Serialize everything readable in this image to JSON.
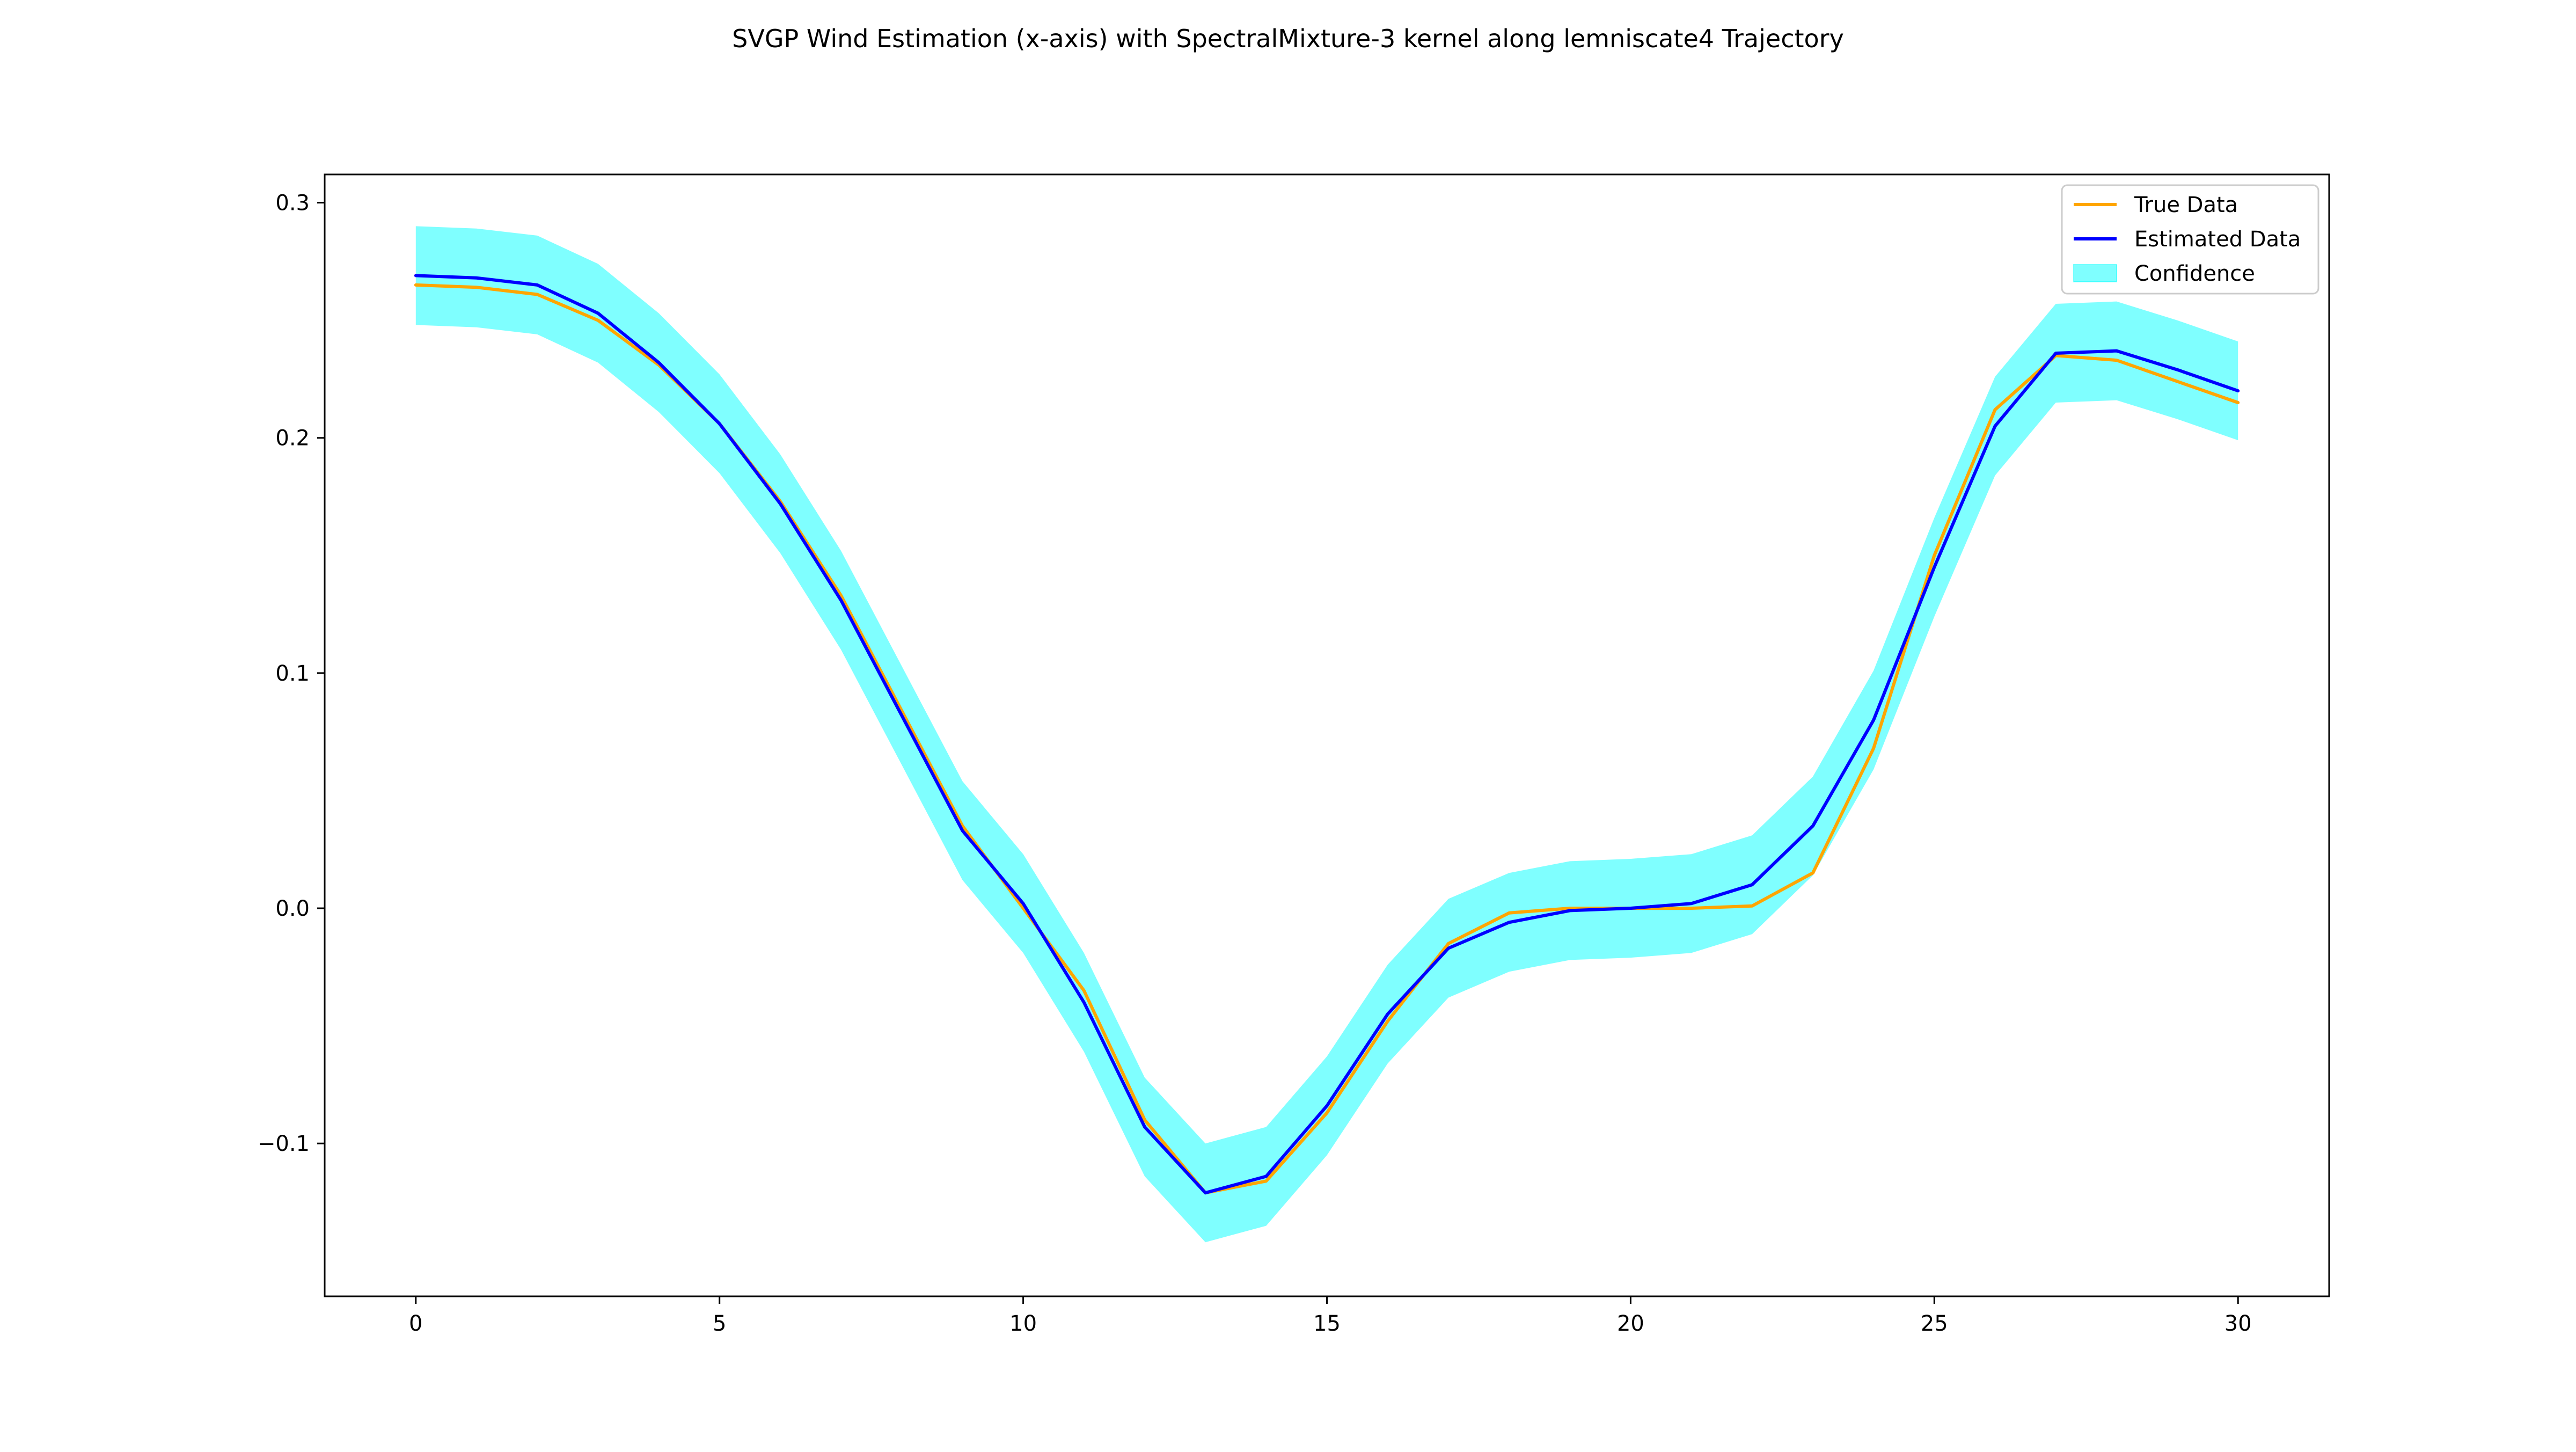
{
  "chart_data": {
    "type": "line",
    "title": "SVGP Wind Estimation (x-axis) with SpectralMixture-3 kernel along lemniscate4 Trajectory",
    "xlabel": "",
    "ylabel": "",
    "xlim": [
      -1.5,
      31.5
    ],
    "ylim": [
      -0.165,
      0.312
    ],
    "x_ticks": [
      0,
      5,
      10,
      15,
      20,
      25,
      30
    ],
    "x_tick_labels": [
      "0",
      "5",
      "10",
      "15",
      "20",
      "25",
      "30"
    ],
    "y_ticks": [
      -0.1,
      0.0,
      0.1,
      0.2,
      0.3
    ],
    "y_tick_labels": [
      "−0.1",
      "0.0",
      "0.1",
      "0.2",
      "0.3"
    ],
    "grid": false,
    "legend_position": "top-right",
    "x": [
      0,
      1,
      2,
      3,
      4,
      5,
      6,
      7,
      8,
      9,
      10,
      11,
      12,
      13,
      14,
      15,
      16,
      17,
      18,
      19,
      20,
      21,
      22,
      23,
      24,
      25,
      26,
      27,
      28,
      29,
      30
    ],
    "series": [
      {
        "name": "True Data",
        "color": "#FFA500",
        "values": [
          0.265,
          0.264,
          0.261,
          0.25,
          0.231,
          0.206,
          0.173,
          0.133,
          0.084,
          0.035,
          0.0,
          -0.035,
          -0.09,
          -0.121,
          -0.116,
          -0.087,
          -0.048,
          -0.015,
          -0.002,
          0.0,
          0.0,
          0.0,
          0.001,
          0.015,
          0.068,
          0.15,
          0.212,
          0.235,
          0.233,
          0.224,
          0.215
        ]
      },
      {
        "name": "Estimated Data",
        "color": "#0000FF",
        "values": [
          0.269,
          0.268,
          0.265,
          0.253,
          0.232,
          0.206,
          0.172,
          0.131,
          0.082,
          0.033,
          0.002,
          -0.04,
          -0.093,
          -0.121,
          -0.114,
          -0.084,
          -0.045,
          -0.017,
          -0.006,
          -0.001,
          0.0,
          0.002,
          0.01,
          0.035,
          0.08,
          0.145,
          0.205,
          0.236,
          0.237,
          0.229,
          0.22
        ]
      }
    ],
    "confidence": {
      "name": "Confidence",
      "color": "#00FFFF",
      "opacity": 0.5,
      "lower": [
        0.248,
        0.247,
        0.244,
        0.232,
        0.211,
        0.185,
        0.151,
        0.11,
        0.061,
        0.012,
        -0.019,
        -0.061,
        -0.114,
        -0.142,
        -0.135,
        -0.105,
        -0.066,
        -0.038,
        -0.027,
        -0.022,
        -0.021,
        -0.019,
        -0.011,
        0.014,
        0.059,
        0.124,
        0.184,
        0.215,
        0.216,
        0.208,
        0.199
      ],
      "upper": [
        0.29,
        0.289,
        0.286,
        0.274,
        0.253,
        0.227,
        0.193,
        0.152,
        0.103,
        0.054,
        0.023,
        -0.019,
        -0.072,
        -0.1,
        -0.093,
        -0.063,
        -0.024,
        0.004,
        0.015,
        0.02,
        0.021,
        0.023,
        0.031,
        0.056,
        0.101,
        0.166,
        0.226,
        0.257,
        0.258,
        0.25,
        0.241
      ]
    }
  }
}
